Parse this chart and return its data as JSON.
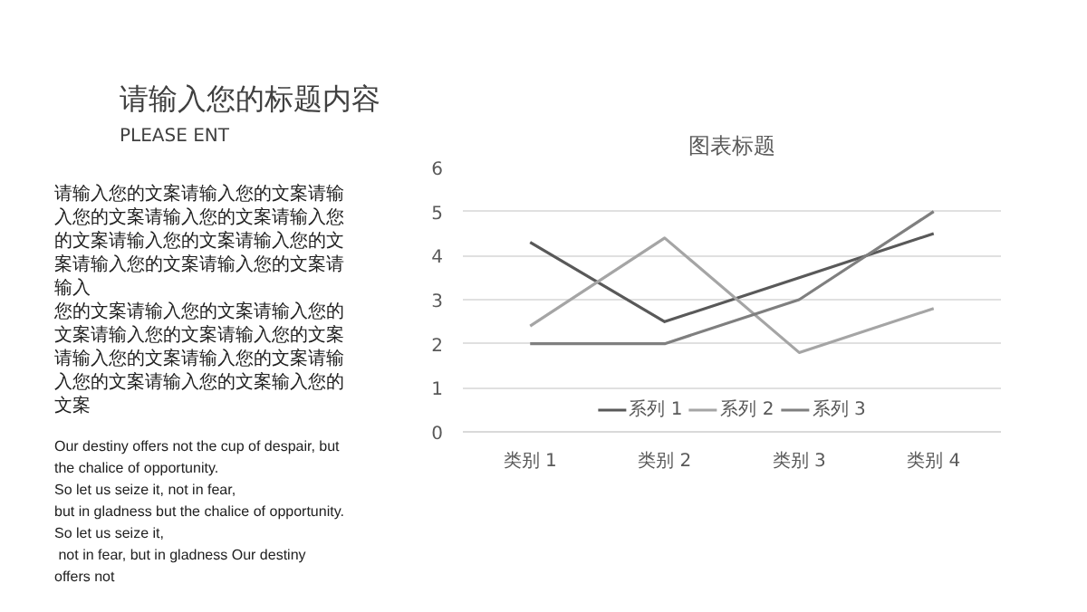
{
  "chart_data": {
    "type": "line",
    "title": "图表标题",
    "categories": [
      "类别 1",
      "类别 2",
      "类别 3",
      "类别 4"
    ],
    "series": [
      {
        "name": "系列 1",
        "color": "#595959",
        "values": [
          4.3,
          2.5,
          3.5,
          4.5
        ]
      },
      {
        "name": "系列 2",
        "color": "#a5a5a5",
        "values": [
          2.4,
          4.4,
          1.8,
          2.8
        ]
      },
      {
        "name": "系列 3",
        "color": "#7f7f7f",
        "values": [
          2,
          2,
          3,
          5
        ]
      }
    ],
    "ylim": [
      0,
      6
    ],
    "yticks": [
      0,
      1,
      2,
      3,
      4,
      5,
      6
    ],
    "grid": "y",
    "legend": "bottom",
    "marker": "none",
    "line_style": "solid",
    "annotations": [
      "请输入您的标题内容",
      "PLEASE ENT",
      "请输入您的文案请输入您的文案请输入您的文案请输入您的文案请输入您的文案请输入您的文案请输入您的文案请输入您的文案请输入您的文案请输入",
      "您的文案请输入您的文案请输入您的文案请输入您的文案请输入您的文案请输入您的文案请输入您的文案请输入您的文案请输入您的文案输入您的文案",
      "Our destiny offers not the cup of despair, but the chalice of opportunity.",
      "So let us seize it, not in fear,",
      "but in gladness but the chalice of opportunity. So let us seize it,",
      " not in fear, but in gladness Our destiny offers not"
    ]
  }
}
